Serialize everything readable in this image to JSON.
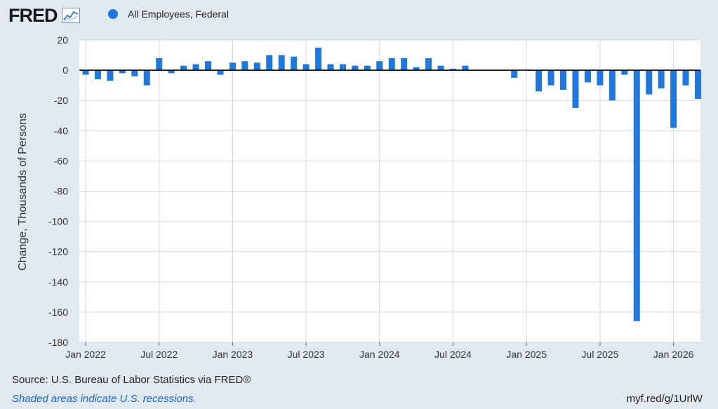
{
  "logo": {
    "text": "FRED",
    "icon": "line-chart-icon"
  },
  "legend": {
    "label": "All Employees, Federal",
    "color": "#1f77e0"
  },
  "footer": {
    "source": "Source: U.S. Bureau of Labor Statistics via FRED®",
    "note": "Shaded areas indicate U.S. recessions.",
    "short_url": "myf.red/g/1UrlW"
  },
  "colors": {
    "background": "#e1e9f0",
    "plot": "#ffffff",
    "bar": "#1f77e0",
    "note": "#1a65c8"
  },
  "chart_data": {
    "type": "bar",
    "title": "",
    "xlabel": "",
    "ylabel": "Change, Thousands of Persons",
    "ylim": [
      -180,
      20
    ],
    "yticks": [
      20,
      0,
      -20,
      -40,
      -60,
      -80,
      -100,
      -120,
      -140,
      -160,
      -180
    ],
    "xticks": [
      "Jan 2022",
      "Jul 2022",
      "Jan 2023",
      "Jul 2023",
      "Jan 2024",
      "Jul 2024",
      "Jan 2025",
      "Jul 2025",
      "Jan 2026"
    ],
    "grid": true,
    "legend_position": "top-left",
    "categories": [
      "2022-01",
      "2022-02",
      "2022-03",
      "2022-04",
      "2022-05",
      "2022-06",
      "2022-07",
      "2022-08",
      "2022-09",
      "2022-10",
      "2022-11",
      "2022-12",
      "2023-01",
      "2023-02",
      "2023-03",
      "2023-04",
      "2023-05",
      "2023-06",
      "2023-07",
      "2023-08",
      "2023-09",
      "2023-10",
      "2023-11",
      "2023-12",
      "2024-01",
      "2024-02",
      "2024-03",
      "2024-04",
      "2024-05",
      "2024-06",
      "2024-07",
      "2024-08",
      "2024-09",
      "2024-10",
      "2024-11",
      "2024-12",
      "2025-01",
      "2025-02",
      "2025-03",
      "2025-04",
      "2025-05",
      "2025-06",
      "2025-07",
      "2025-08",
      "2025-09",
      "2025-10",
      "2025-11",
      "2025-12",
      "2026-01",
      "2026-02",
      "2026-03"
    ],
    "series": [
      {
        "name": "All Employees, Federal",
        "values": [
          -3,
          -6,
          -7,
          -2,
          -4,
          -10,
          8,
          -2,
          3,
          4,
          6,
          -3,
          5,
          6,
          5,
          10,
          10,
          9,
          4,
          15,
          4,
          4,
          3,
          3,
          6,
          8,
          8,
          2,
          8,
          3,
          1,
          3,
          0,
          0,
          0,
          -5,
          0,
          -14,
          -10,
          -13,
          -25,
          -8,
          -10,
          -20,
          -3,
          -166,
          -16,
          -12,
          -38,
          -10,
          -19
        ]
      }
    ]
  }
}
